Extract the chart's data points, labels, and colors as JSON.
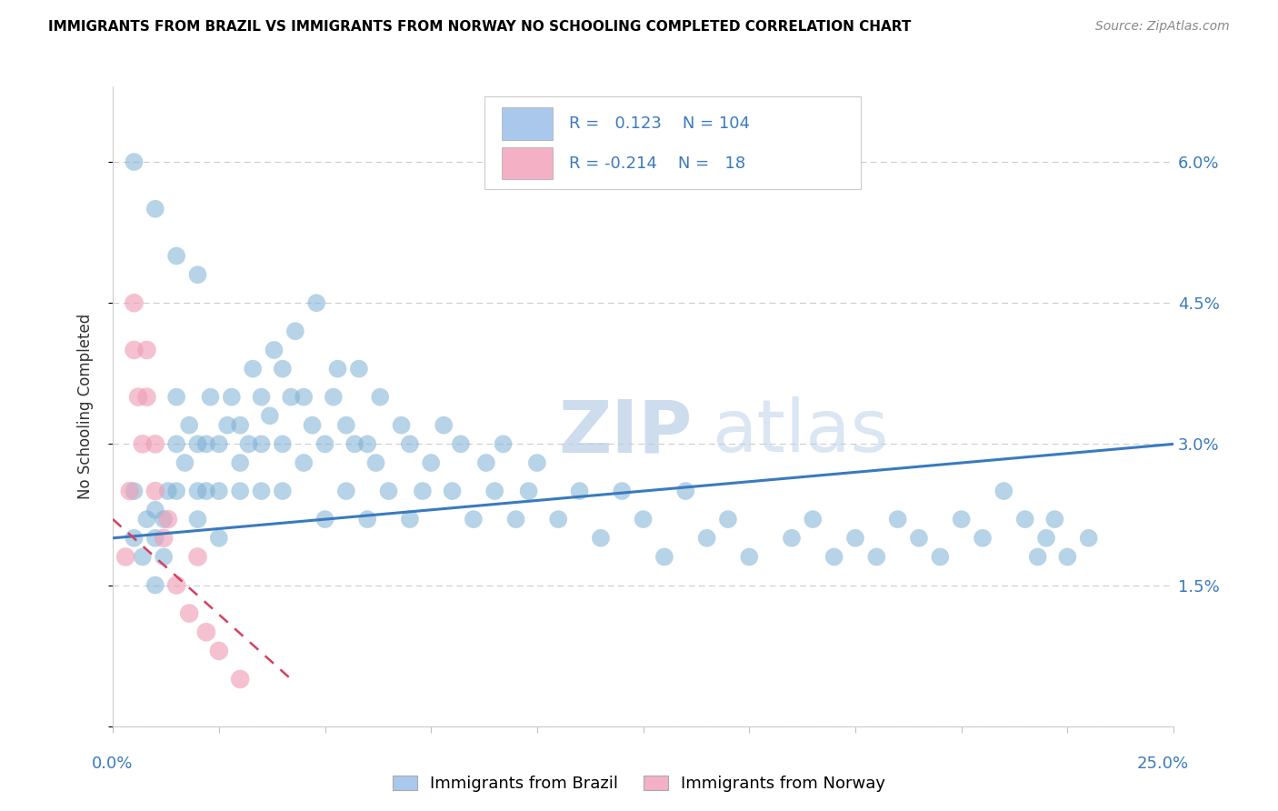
{
  "title": "IMMIGRANTS FROM BRAZIL VS IMMIGRANTS FROM NORWAY NO SCHOOLING COMPLETED CORRELATION CHART",
  "source": "Source: ZipAtlas.com",
  "ylabel": "No Schooling Completed",
  "xmin": 0.0,
  "xmax": 0.25,
  "ymin": 0.0,
  "ymax": 0.068,
  "brazil_R": 0.123,
  "brazil_N": 104,
  "norway_R": -0.214,
  "norway_N": 18,
  "brazil_color": "#7bafd4",
  "norway_color": "#f0a0b8",
  "brazil_line_color": "#3a7abf",
  "norway_line_color": "#d44060",
  "ytick_vals": [
    0.0,
    0.015,
    0.03,
    0.045,
    0.06
  ],
  "ytick_labels": [
    "",
    "1.5%",
    "3.0%",
    "4.5%",
    "6.0%"
  ],
  "legend_brazil_fill": "#aac8ec",
  "legend_norway_fill": "#f4b0c4",
  "watermark_zip": "ZIP",
  "watermark_atlas": "atlas",
  "brazil_x": [
    0.005,
    0.005,
    0.007,
    0.008,
    0.01,
    0.01,
    0.01,
    0.012,
    0.012,
    0.013,
    0.015,
    0.015,
    0.015,
    0.017,
    0.018,
    0.02,
    0.02,
    0.02,
    0.022,
    0.022,
    0.023,
    0.025,
    0.025,
    0.025,
    0.027,
    0.028,
    0.03,
    0.03,
    0.03,
    0.032,
    0.033,
    0.035,
    0.035,
    0.035,
    0.037,
    0.038,
    0.04,
    0.04,
    0.04,
    0.042,
    0.043,
    0.045,
    0.045,
    0.047,
    0.048,
    0.05,
    0.05,
    0.052,
    0.053,
    0.055,
    0.055,
    0.057,
    0.058,
    0.06,
    0.06,
    0.062,
    0.063,
    0.065,
    0.068,
    0.07,
    0.07,
    0.073,
    0.075,
    0.078,
    0.08,
    0.082,
    0.085,
    0.088,
    0.09,
    0.092,
    0.095,
    0.098,
    0.1,
    0.105,
    0.11,
    0.115,
    0.12,
    0.125,
    0.13,
    0.135,
    0.14,
    0.145,
    0.15,
    0.16,
    0.165,
    0.17,
    0.175,
    0.18,
    0.185,
    0.19,
    0.195,
    0.2,
    0.205,
    0.21,
    0.215,
    0.218,
    0.22,
    0.222,
    0.225,
    0.23,
    0.005,
    0.01,
    0.015,
    0.02
  ],
  "brazil_y": [
    0.02,
    0.025,
    0.018,
    0.022,
    0.015,
    0.02,
    0.023,
    0.018,
    0.022,
    0.025,
    0.025,
    0.03,
    0.035,
    0.028,
    0.032,
    0.022,
    0.025,
    0.03,
    0.025,
    0.03,
    0.035,
    0.02,
    0.025,
    0.03,
    0.032,
    0.035,
    0.025,
    0.028,
    0.032,
    0.03,
    0.038,
    0.025,
    0.03,
    0.035,
    0.033,
    0.04,
    0.025,
    0.03,
    0.038,
    0.035,
    0.042,
    0.028,
    0.035,
    0.032,
    0.045,
    0.022,
    0.03,
    0.035,
    0.038,
    0.025,
    0.032,
    0.03,
    0.038,
    0.022,
    0.03,
    0.028,
    0.035,
    0.025,
    0.032,
    0.022,
    0.03,
    0.025,
    0.028,
    0.032,
    0.025,
    0.03,
    0.022,
    0.028,
    0.025,
    0.03,
    0.022,
    0.025,
    0.028,
    0.022,
    0.025,
    0.02,
    0.025,
    0.022,
    0.018,
    0.025,
    0.02,
    0.022,
    0.018,
    0.02,
    0.022,
    0.018,
    0.02,
    0.018,
    0.022,
    0.02,
    0.018,
    0.022,
    0.02,
    0.025,
    0.022,
    0.018,
    0.02,
    0.022,
    0.018,
    0.02,
    0.06,
    0.055,
    0.05,
    0.048
  ],
  "norway_x": [
    0.003,
    0.004,
    0.005,
    0.005,
    0.006,
    0.007,
    0.008,
    0.008,
    0.01,
    0.01,
    0.012,
    0.013,
    0.015,
    0.018,
    0.02,
    0.022,
    0.025,
    0.03
  ],
  "norway_y": [
    0.018,
    0.025,
    0.04,
    0.045,
    0.035,
    0.03,
    0.035,
    0.04,
    0.025,
    0.03,
    0.02,
    0.022,
    0.015,
    0.012,
    0.018,
    0.01,
    0.008,
    0.005
  ],
  "brazil_line_x0": 0.0,
  "brazil_line_x1": 0.25,
  "brazil_line_y0": 0.02,
  "brazil_line_y1": 0.03,
  "norway_line_x0": 0.0,
  "norway_line_x1": 0.042,
  "norway_line_y0": 0.022,
  "norway_line_y1": 0.005
}
